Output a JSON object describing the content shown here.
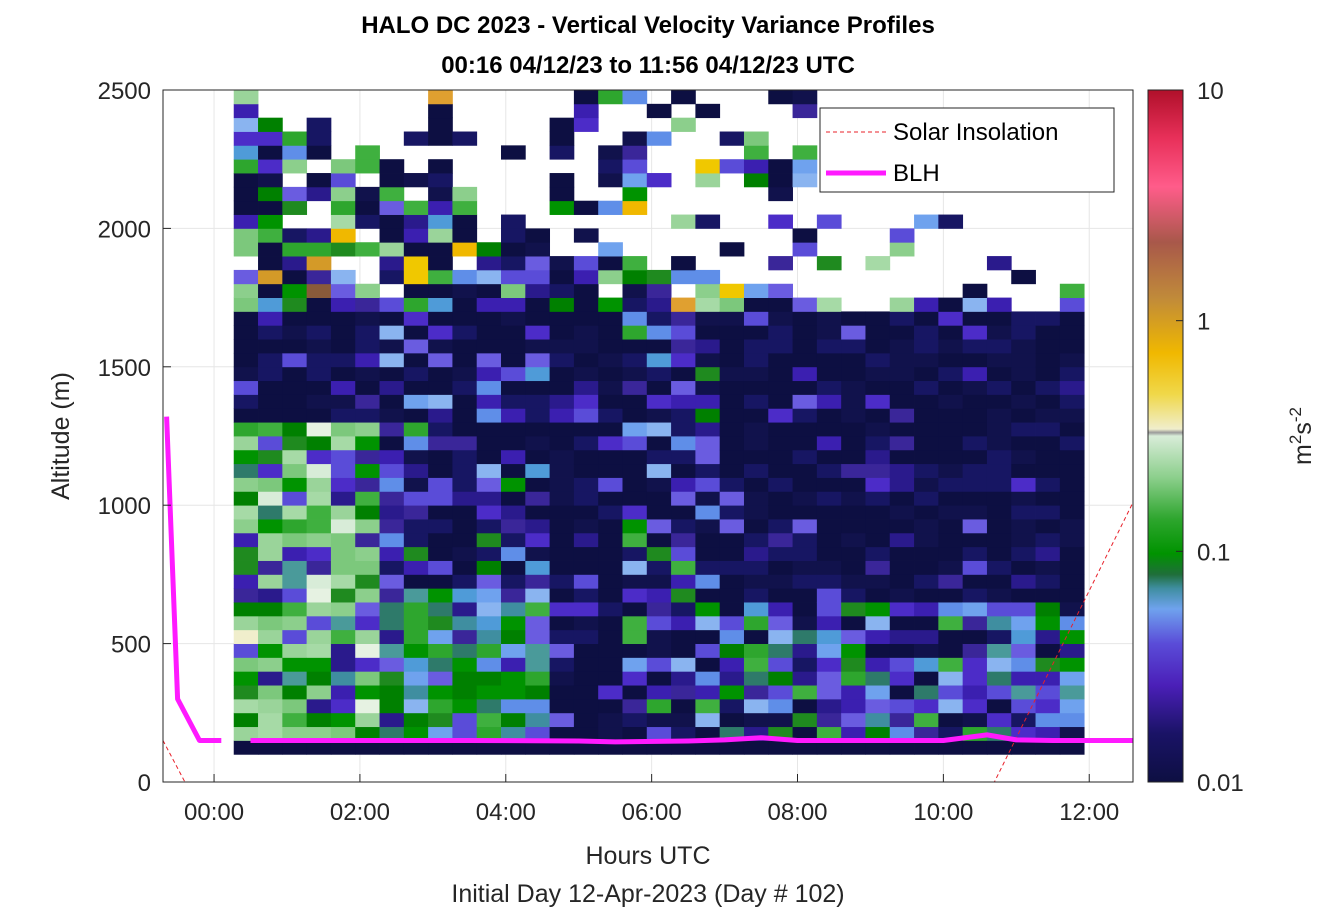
{
  "chart_data": {
    "type": "heatmap",
    "title": "HALO DC 2023 - Vertical Velocity Variance Profiles",
    "subtitle": "00:16 04/12/23 to 11:56 04/12/23  UTC",
    "xlabel": "Hours UTC",
    "xlabel2": "Initial Day 12-Apr-2023 (Day # 102)",
    "ylabel": "Altitude (m)",
    "xlim": [
      -0.7,
      12.6
    ],
    "ylim": [
      0,
      2500
    ],
    "x_ticks": [
      0,
      2,
      4,
      6,
      8,
      10,
      12
    ],
    "x_tick_labels": [
      "00:00",
      "02:00",
      "04:00",
      "06:00",
      "08:00",
      "10:00",
      "12:00"
    ],
    "y_ticks": [
      0,
      500,
      1000,
      1500,
      2000,
      2500
    ],
    "y_tick_labels": [
      "0",
      "500",
      "1000",
      "1500",
      "2000",
      "2500"
    ],
    "grid": true,
    "colorbar": {
      "scale": "log",
      "range": [
        0.01,
        10
      ],
      "ticks": [
        0.01,
        0.1,
        1,
        10
      ],
      "tick_labels": [
        "0.01",
        "0.1",
        "1",
        "10"
      ],
      "label_base": "m",
      "label_sup1": "2",
      "label_mid": "s",
      "label_sup2": "-2"
    },
    "legend": {
      "position": "top-right",
      "entries": [
        {
          "label": "Solar Insolation",
          "color": "#e8202a",
          "style": "dashed"
        },
        {
          "label": "BLH",
          "color": "#ff1aff",
          "style": "solid"
        }
      ]
    },
    "heatmap_grid": {
      "x_start": 0.27,
      "x_end": 11.93,
      "y_min": 100,
      "y_max": 2500,
      "cell_height_m": 50,
      "columns": 35
    },
    "series": [
      {
        "name": "BLH",
        "color": "#ff1aff",
        "segments": [
          [
            [
              -0.65,
              1320
            ],
            [
              -0.5,
              300
            ],
            [
              -0.2,
              150
            ],
            [
              0.1,
              150
            ]
          ],
          [
            [
              0.5,
              150
            ],
            [
              3.5,
              150
            ],
            [
              5.0,
              148
            ],
            [
              5.5,
              145
            ],
            [
              6.5,
              148
            ],
            [
              7.0,
              152
            ],
            [
              7.5,
              160
            ],
            [
              8.0,
              150
            ],
            [
              9.0,
              150
            ],
            [
              10.0,
              150
            ],
            [
              10.6,
              170
            ],
            [
              11.0,
              152
            ],
            [
              11.5,
              150
            ],
            [
              12.6,
              150
            ]
          ]
        ]
      },
      {
        "name": "Solar Insolation",
        "color": "#e8202a",
        "values": [
          [
            -0.7,
            150
          ],
          [
            -0.4,
            0
          ],
          [
            10.7,
            0
          ],
          [
            12.6,
            1010
          ]
        ]
      }
    ]
  }
}
